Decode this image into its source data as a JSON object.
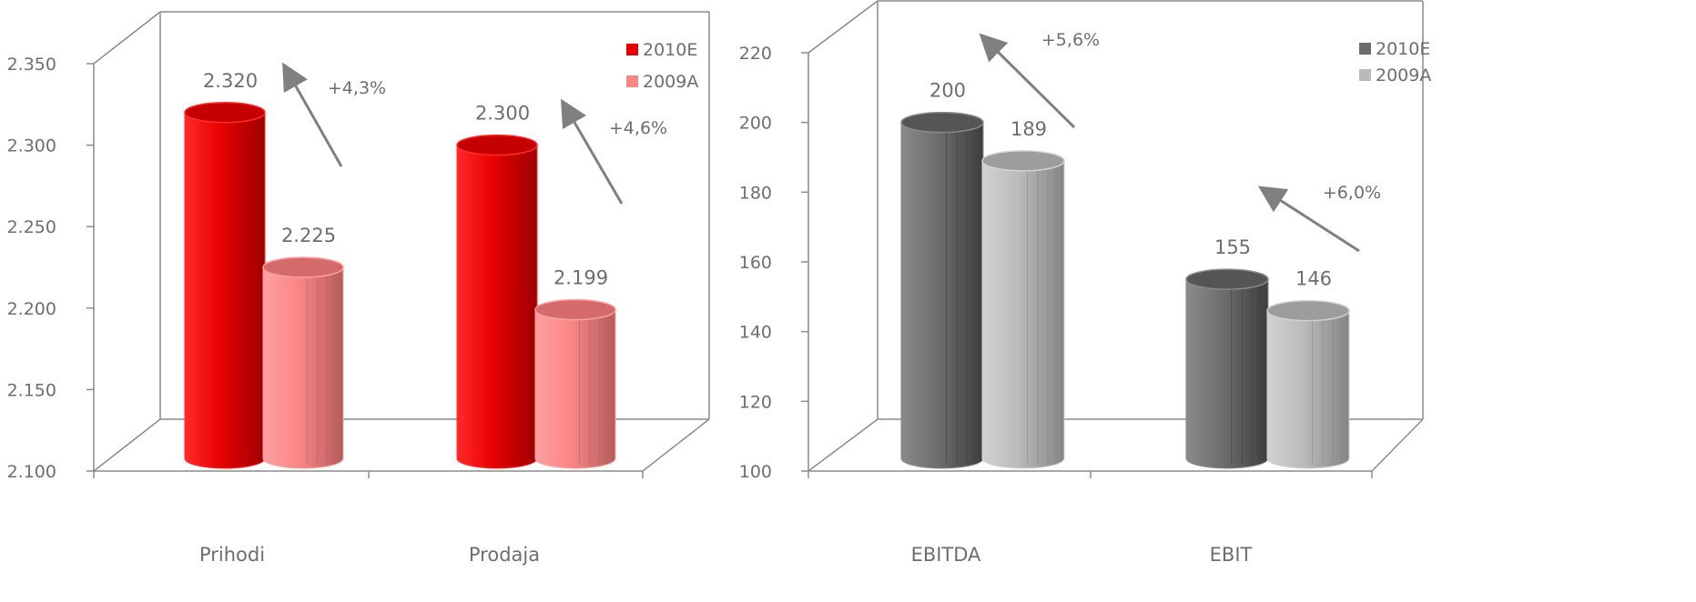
{
  "chart_data": [
    {
      "type": "bar",
      "categories": [
        "Prihodi",
        "Prodaja"
      ],
      "series": [
        {
          "name": "2010E",
          "values": [
            2320,
            2300
          ],
          "labels": [
            "2.320",
            "2.300"
          ]
        },
        {
          "name": "2009A",
          "values": [
            2225,
            2199
          ],
          "labels": [
            "2.225",
            "2.199"
          ]
        }
      ],
      "y_ticks": [
        "2.100",
        "2.150",
        "2.200",
        "2.250",
        "2.300",
        "2.350"
      ],
      "ylim": [
        2100,
        2350
      ],
      "growth_labels": [
        "+4,3%",
        "+4,6%"
      ],
      "legend_position": "top-right",
      "colors": {
        "2010E": {
          "light": "#ff2a2a",
          "base": "#e80000",
          "dark": "#9e0000",
          "top": "#c40000"
        },
        "2009A": {
          "light": "#ffa0a0",
          "base": "#f98686",
          "dark": "#b45c5c",
          "top": "#d56a6a"
        }
      },
      "grid": false
    },
    {
      "type": "bar",
      "categories": [
        "EBITDA",
        "EBIT"
      ],
      "series": [
        {
          "name": "2010E",
          "values": [
            200,
            155
          ],
          "labels": [
            "200",
            "155"
          ]
        },
        {
          "name": "2009A",
          "values": [
            189,
            146
          ],
          "labels": [
            "189",
            "146"
          ]
        }
      ],
      "y_ticks": [
        "100",
        "120",
        "140",
        "160",
        "180",
        "200",
        "220"
      ],
      "ylim": [
        100,
        220
      ],
      "growth_labels": [
        "+5,6%",
        "+6,0%"
      ],
      "legend_position": "top-right",
      "colors": {
        "2010E": {
          "light": "#8a8a8a",
          "base": "#6d6d6d",
          "dark": "#3e3e3e",
          "top": "#555555"
        },
        "2009A": {
          "light": "#d2d2d2",
          "base": "#bababa",
          "dark": "#858585",
          "top": "#9d9d9d"
        }
      },
      "grid": false
    }
  ]
}
